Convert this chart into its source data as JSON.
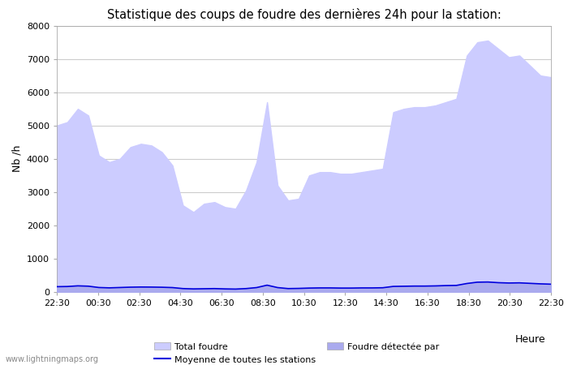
{
  "title": "Statistique des coups de foudre des dernières 24h pour la station:",
  "ylabel": "Nb /h",
  "xlabel_right": "Heure",
  "watermark": "www.lightningmaps.org",
  "x_tick_labels": [
    "22:30",
    "00:30",
    "02:30",
    "04:30",
    "06:30",
    "08:30",
    "10:30",
    "12:30",
    "14:30",
    "16:30",
    "18:30",
    "20:30",
    "22:30"
  ],
  "ylim": [
    0,
    8000
  ],
  "yticks": [
    0,
    1000,
    2000,
    3000,
    4000,
    5000,
    6000,
    7000,
    8000
  ],
  "fill_color_total": "#ccccff",
  "fill_color_detected": "#aaaaee",
  "line_color_moyenne": "#0000dd",
  "background_color": "#ffffff",
  "grid_color": "#cccccc",
  "total_foudre": [
    5000,
    5100,
    5500,
    5300,
    4100,
    3900,
    4000,
    4350,
    4450,
    4400,
    4200,
    3800,
    2600,
    2400,
    2650,
    2700,
    2550,
    2500,
    3050,
    3900,
    5700,
    3200,
    2750,
    2800,
    3500,
    3600,
    3600,
    3550,
    3550,
    3600,
    3650,
    3700,
    5400,
    5500,
    5550,
    5550,
    5600,
    5700,
    5800,
    7100,
    7500,
    7550,
    7300,
    7050,
    7100,
    6800,
    6500,
    6450
  ],
  "detected_foudre": [
    150,
    160,
    180,
    170,
    130,
    120,
    130,
    140,
    145,
    145,
    140,
    130,
    100,
    90,
    95,
    100,
    90,
    85,
    100,
    130,
    200,
    130,
    100,
    105,
    115,
    120,
    120,
    115,
    115,
    120,
    120,
    125,
    165,
    170,
    175,
    175,
    180,
    190,
    195,
    250,
    290,
    295,
    275,
    265,
    270,
    255,
    240,
    230
  ],
  "moyenne_stations": [
    160,
    165,
    185,
    175,
    135,
    125,
    135,
    145,
    150,
    148,
    143,
    133,
    103,
    93,
    98,
    103,
    93,
    88,
    103,
    133,
    205,
    133,
    103,
    108,
    118,
    123,
    123,
    118,
    118,
    123,
    123,
    128,
    168,
    173,
    178,
    178,
    183,
    193,
    198,
    255,
    295,
    300,
    280,
    270,
    275,
    260,
    245,
    235
  ],
  "legend_total_label": "Total foudre",
  "legend_detected_label": "Foudre détectée par",
  "legend_moyenne_label": "Moyenne de toutes les stations"
}
